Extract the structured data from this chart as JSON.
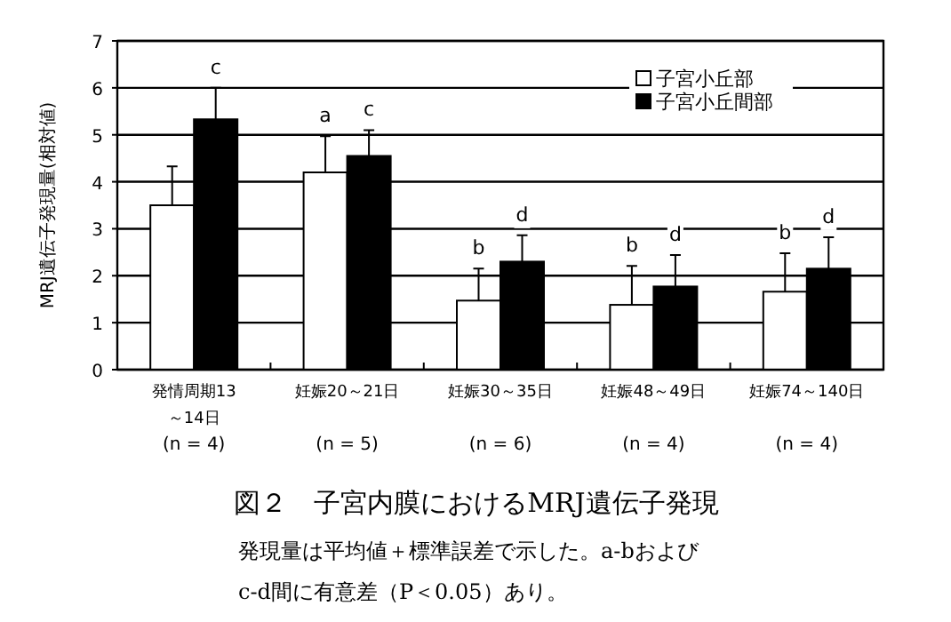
{
  "chart_data": {
    "type": "bar",
    "title": "図２　子宮内膜におけるMRJ遺伝子発現",
    "ylabel": "MRJ遺伝子発現量(相対値)",
    "categories": [
      "発情周期13\n～14日\n(n = 4)",
      "妊娠20～21日\n\n(n = 5)",
      "妊娠30～35日\n\n(n = 6)",
      "妊娠48～49日\n\n(n = 4)",
      "妊娠74～140日\n\n(n = 4)"
    ],
    "series": [
      {
        "name": "子宮小丘部",
        "color": "#ffffff",
        "values": [
          3.5,
          4.2,
          1.47,
          1.38,
          1.66
        ],
        "errors": [
          [
            3.5,
            4.33
          ],
          [
            4.2,
            4.97
          ],
          [
            1.47,
            2.15
          ],
          [
            1.38,
            2.21
          ],
          [
            1.66,
            2.48
          ]
        ],
        "value_labels": [
          null,
          "a",
          "b",
          "b",
          "b"
        ]
      },
      {
        "name": "子宮小丘間部",
        "color": "#000000",
        "values": [
          5.33,
          4.55,
          2.3,
          1.77,
          2.15
        ],
        "errors": [
          [
            5.33,
            6.0
          ],
          [
            4.55,
            5.1
          ],
          [
            2.3,
            2.86
          ],
          [
            1.77,
            2.44
          ],
          [
            2.15,
            2.82
          ]
        ],
        "value_labels": [
          "c",
          "c",
          "d",
          "d",
          "d"
        ]
      }
    ],
    "ylim": [
      0,
      7
    ],
    "yticks": [
      0,
      1,
      2,
      3,
      4,
      5,
      6,
      7
    ],
    "grid": "y",
    "legend": "top right",
    "annotations": [
      "発現量は平均値＋標準誤差で示した。a-bおよび\nc-d間に有意差（P＜0.05）あり。"
    ]
  }
}
